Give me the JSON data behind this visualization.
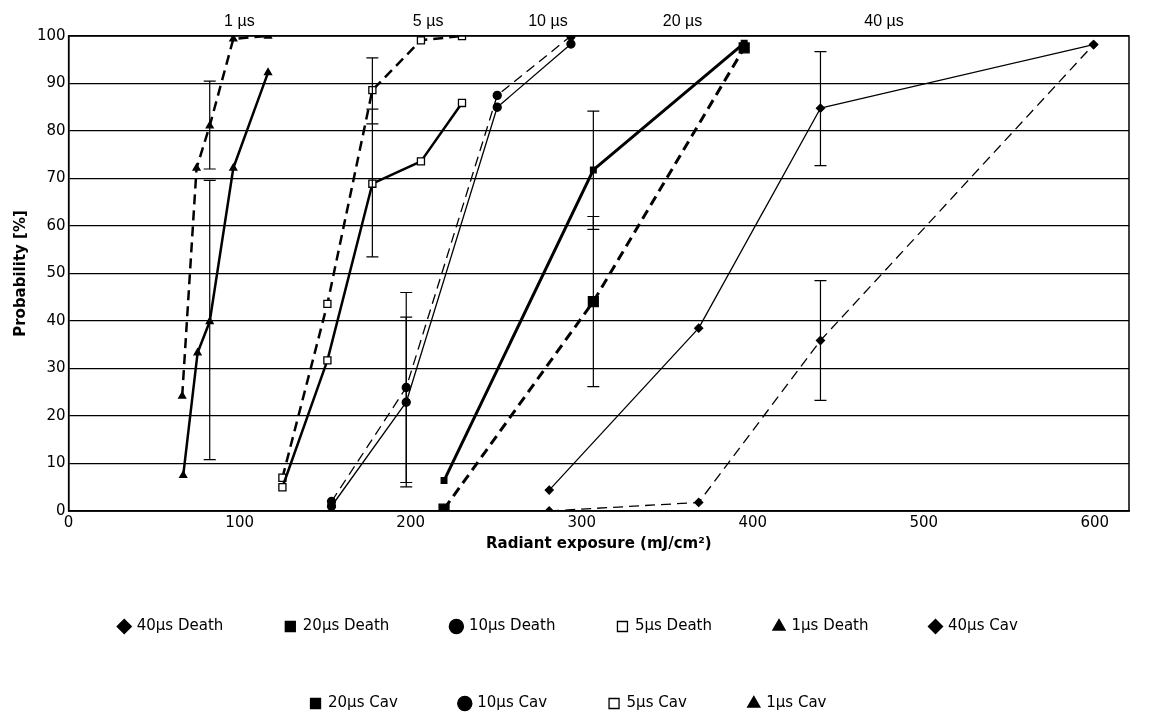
{
  "chart_data": {
    "type": "line",
    "xlabel": "Radiant exposure (mJ/cm²)",
    "ylabel": "Probability [%]",
    "xlim": [
      0,
      620
    ],
    "xticks": [
      0,
      100,
      200,
      300,
      400,
      500,
      600
    ],
    "ylim": [
      0,
      100
    ],
    "yticks": [
      0,
      10,
      20,
      30,
      40,
      50,
      60,
      70,
      80,
      90,
      100
    ],
    "grid": "y",
    "legend": "bottom",
    "annotations": [
      "1 µs",
      "5 µs",
      "10 µs",
      "20 µs",
      "40 µs"
    ],
    "series": [
      {
        "name": "40µs Death",
        "color": "#000000",
        "marker": "diamond",
        "line_style": "solid",
        "x": [
          281,
          368.4,
          439.6,
          599.3
        ],
        "values": [
          4.4,
          38.5,
          84.8,
          98.2
        ],
        "errors": [
          null,
          null,
          [
            72.7,
            96.7
          ],
          null
        ]
      },
      {
        "name": "20µs Death",
        "color": "#000000",
        "marker": "square",
        "line_style": "solid",
        "x": [
          219.5,
          306.8,
          395
        ],
        "values": [
          6.4,
          71.8,
          98.5
        ],
        "errors": [
          null,
          [
            59.3,
            84.2
          ],
          null
        ]
      },
      {
        "name": "10µs Death",
        "color": "#000000",
        "marker": "circle",
        "line_style": "solid",
        "x": [
          153.7,
          197.4,
          250.6,
          293.7
        ],
        "values": [
          1,
          22.9,
          85,
          98.3
        ],
        "errors": [
          null,
          [
            5.1,
            40.8
          ],
          null,
          null
        ]
      },
      {
        "name": "5µs Death",
        "color": "#000000",
        "marker": "square",
        "line_style": "solid",
        "x": [
          125,
          151.3,
          177.6,
          206,
          230
        ],
        "values": [
          5,
          31.7,
          68.9,
          73.6,
          85.9
        ],
        "errors": [
          null,
          null,
          [
            53.5,
            84.6
          ],
          null,
          null
        ]
      },
      {
        "name": "1µs Death",
        "color": "#000000",
        "marker": "triangle",
        "line_style": "solid",
        "x": [
          67,
          75.4,
          82.5,
          96.3,
          116.6
        ],
        "values": [
          7.5,
          33.3,
          39.9,
          72.2,
          92.3
        ],
        "errors": [
          null,
          null,
          [
            10.8,
            69.6
          ],
          null,
          null
        ]
      },
      {
        "name": "40µs Cav",
        "color": "#000000",
        "marker": "diamond",
        "line_style": "dashed",
        "x": [
          281,
          368.4,
          439.6,
          599.3
        ],
        "values": [
          0,
          1.8,
          35.9,
          98.2
        ],
        "errors": [
          null,
          null,
          [
            23.3,
            48.5
          ],
          null
        ]
      },
      {
        "name": "20µs Cav",
        "color": "#000000",
        "marker": "square",
        "line_style": "dashed",
        "x": [
          219.5,
          306.8,
          395
        ],
        "values": [
          0.4,
          44.1,
          97.5
        ],
        "errors": [
          null,
          [
            26.2,
            62
          ],
          null
        ]
      },
      {
        "name": "10µs Cav",
        "color": "#000000",
        "marker": "circle",
        "line_style": "dashed",
        "x": [
          153.7,
          197.4,
          250.6,
          293.7
        ],
        "values": [
          2,
          26,
          87.5,
          100
        ],
        "errors": [
          null,
          [
            6,
            46
          ],
          null,
          null
        ]
      },
      {
        "name": "5µs Cav",
        "color": "#000000",
        "marker": "square",
        "line_style": "dashed",
        "x": [
          125,
          151.3,
          177.6,
          206,
          230
        ],
        "values": [
          7,
          43.6,
          88.6,
          99.1,
          100
        ],
        "errors": [
          null,
          null,
          [
            81.5,
            95.4
          ],
          null,
          null
        ]
      },
      {
        "name": "1µs Cav",
        "color": "#000000",
        "marker": "triangle",
        "line_style": "dashed",
        "x": [
          66.4,
          74.8,
          82.5,
          96.3,
          116.6
        ],
        "values": [
          24.2,
          72.2,
          81.1,
          99.4,
          100
        ],
        "errors": [
          null,
          null,
          [
            72,
            90.5
          ],
          null,
          null
        ]
      }
    ]
  }
}
